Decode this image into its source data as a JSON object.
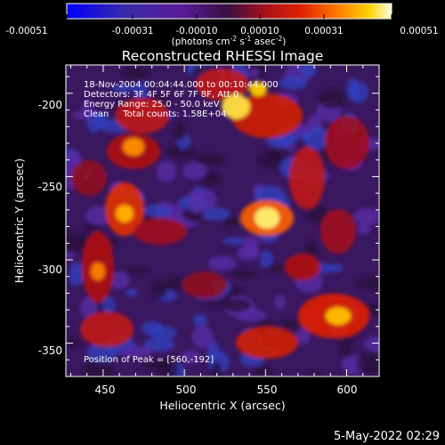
{
  "colorbar": {
    "ticks": [
      "-0.00051",
      "-0.00031",
      "-0.00010",
      "0.00010",
      "0.00031",
      "0.00051"
    ],
    "unit_prefix": "(photons cm",
    "unit_exp1": "-2",
    "unit_mid": " s",
    "unit_exp2": "-1",
    "unit_suffix": " asec",
    "unit_exp3": "-2",
    "unit_close": ")"
  },
  "plot": {
    "title": "Reconstructed RHESSI Image",
    "xlabel": "Heliocentric X (arcsec)",
    "ylabel": "Heliocentric Y (arcsec)",
    "xticks": [
      "450",
      "500",
      "550",
      "600"
    ],
    "yticks": [
      "-200",
      "-250",
      "-300",
      "-350"
    ],
    "xlim": [
      427,
      620
    ],
    "ylim": [
      -370,
      -183
    ],
    "annotations": [
      "18-Nov-2004 00:04:44.000 to 00:10:44.000",
      "Detectors: 3F 4F 5F 6F 7F 8F, Att 0",
      "Energy Range: 25.0 - 50.0 keV",
      "Clean     Total counts: 1.58E+04"
    ],
    "peak_label": "Position of Peak = [560,-192]"
  },
  "footer": {
    "timestamp": "5-May-2022 02:29"
  }
}
